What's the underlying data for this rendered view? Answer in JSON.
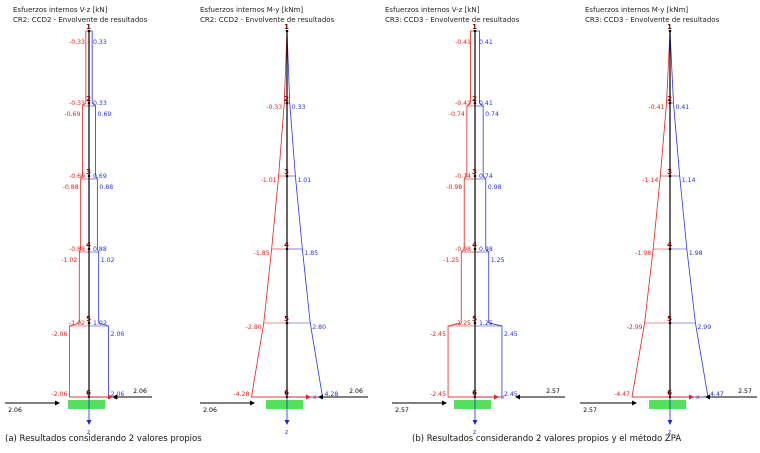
{
  "colors": {
    "neg": "#e0221f",
    "pos": "#2a35d8",
    "support": "#54e05a",
    "axis": "#1a2ad0",
    "member": "#000000",
    "node": "#7a0000"
  },
  "captions": {
    "a": "(a) Resultados considerando 2 valores propios",
    "b": "(b) Resultados considerando 2 valores propios y el método ZPA"
  },
  "panels": [
    {
      "title1": "Esfuerzos internos V-z [kN]",
      "title2": "CR2: CCD2 - Envolvente de resultados",
      "kind": "shear",
      "nodes": [
        {
          "id": "1",
          "neg_label": "-0.33",
          "pos_label": "0.33",
          "neg": 0.33,
          "pos": 0.33
        },
        {
          "id": "2",
          "neg_label": "-0.33",
          "pos_label": "0.33",
          "neg": 0.33,
          "pos": 0.33,
          "neg_below_label": "-0.69",
          "pos_below_label": "0.69",
          "neg_below": 0.69,
          "pos_below": 0.69
        },
        {
          "id": "3",
          "neg_label": "-0.69",
          "pos_label": "0.69",
          "neg": 0.69,
          "pos": 0.69,
          "neg_below_label": "-0.88",
          "pos_below_label": "0.88",
          "neg_below": 0.88,
          "pos_below": 0.88
        },
        {
          "id": "4",
          "neg_label": "-0.88",
          "pos_label": "0.88",
          "neg": 0.88,
          "pos": 0.88,
          "neg_below_label": "-1.02",
          "pos_below_label": "1.02",
          "neg_below": 1.02,
          "pos_below": 1.02
        },
        {
          "id": "5",
          "neg_label": "-1.02",
          "pos_label": "1.02",
          "neg": 1.02,
          "pos": 1.02,
          "neg_below_label": "-2.06",
          "pos_below_label": "2.06",
          "neg_below": 2.06,
          "pos_below": 2.06
        },
        {
          "id": "6",
          "neg_label": "-2.06",
          "pos_label": "2.06",
          "neg": 2.06,
          "pos": 2.06
        }
      ],
      "max": 2.06,
      "left_force": "2.06",
      "right_force": "2.06",
      "axis_x": "x",
      "axis_z": "z"
    },
    {
      "title1": "Esfuerzos internos M-y [kNm]",
      "title2": "CR2: CCD2 - Envolvente de resultados",
      "kind": "moment",
      "nodes": [
        {
          "id": "1",
          "neg": 0,
          "pos": 0
        },
        {
          "id": "2",
          "neg_label": "-0.33",
          "pos_label": "0.33",
          "neg": 0.33,
          "pos": 0.33
        },
        {
          "id": "3",
          "neg_label": "-1.01",
          "pos_label": "1.01",
          "neg": 1.01,
          "pos": 1.01
        },
        {
          "id": "4",
          "neg_label": "-1.85",
          "pos_label": "1.85",
          "neg": 1.85,
          "pos": 1.85
        },
        {
          "id": "5",
          "neg_label": "-2.80",
          "pos_label": "2.80",
          "neg": 2.8,
          "pos": 2.8
        },
        {
          "id": "6",
          "neg_label": "-4.28",
          "pos_label": "4.28",
          "neg": 4.28,
          "pos": 4.28
        }
      ],
      "max": 4.28,
      "left_force": "2.06",
      "right_force": "2.06",
      "axis_x": "x",
      "axis_z": "z"
    },
    {
      "title1": "Esfuerzos internos V-z [kN]",
      "title2": "CR3: CCD3 - Envolvente de resultados",
      "kind": "shear",
      "nodes": [
        {
          "id": "1",
          "neg_label": "-0.41",
          "pos_label": "0.41",
          "neg": 0.41,
          "pos": 0.41
        },
        {
          "id": "2",
          "neg_label": "-0.41",
          "pos_label": "0.41",
          "neg": 0.41,
          "pos": 0.41,
          "neg_below_label": "-0.74",
          "pos_below_label": "0.74",
          "neg_below": 0.74,
          "pos_below": 0.74
        },
        {
          "id": "3",
          "neg_label": "-0.74",
          "pos_label": "0.74",
          "neg": 0.74,
          "pos": 0.74,
          "neg_below_label": "-0.98",
          "pos_below_label": "0.98",
          "neg_below": 0.98,
          "pos_below": 0.98
        },
        {
          "id": "4",
          "neg_label": "-0.98",
          "pos_label": "0.98",
          "neg": 0.98,
          "pos": 0.98,
          "neg_below_label": "-1.25",
          "pos_below_label": "1.25",
          "neg_below": 1.25,
          "pos_below": 1.25
        },
        {
          "id": "5",
          "neg_label": "-1.25",
          "pos_label": "1.25",
          "neg": 1.25,
          "pos": 1.25,
          "neg_below_label": "-2.45",
          "pos_below_label": "2.45",
          "neg_below": 2.45,
          "pos_below": 2.45
        },
        {
          "id": "6",
          "neg_label": "-2.45",
          "pos_label": "2.45",
          "neg": 2.45,
          "pos": 2.45
        }
      ],
      "max": 2.45,
      "left_force": "2.57",
      "right_force": "2.57",
      "axis_x": "x",
      "axis_z": "z"
    },
    {
      "title1": "Esfuerzos internos M-y [kNm]",
      "title2": "CR3: CCD3 - Envolvente de resultados",
      "kind": "moment",
      "nodes": [
        {
          "id": "1",
          "neg": 0,
          "pos": 0
        },
        {
          "id": "2",
          "neg_label": "-0.41",
          "pos_label": "0.41",
          "neg": 0.41,
          "pos": 0.41
        },
        {
          "id": "3",
          "neg_label": "-1.14",
          "pos_label": "1.14",
          "neg": 1.14,
          "pos": 1.14
        },
        {
          "id": "4",
          "neg_label": "-1.98",
          "pos_label": "1.98",
          "neg": 1.98,
          "pos": 1.98
        },
        {
          "id": "5",
          "neg_label": "-2.99",
          "pos_label": "2.99",
          "neg": 2.99,
          "pos": 2.99
        },
        {
          "id": "6",
          "neg_label": "-4.47",
          "pos_label": "4.47",
          "neg": 4.47,
          "pos": 4.47
        }
      ],
      "max": 4.47,
      "left_force": "2.57",
      "right_force": "2.57",
      "axis_x": "x",
      "axis_z": "z"
    }
  ]
}
